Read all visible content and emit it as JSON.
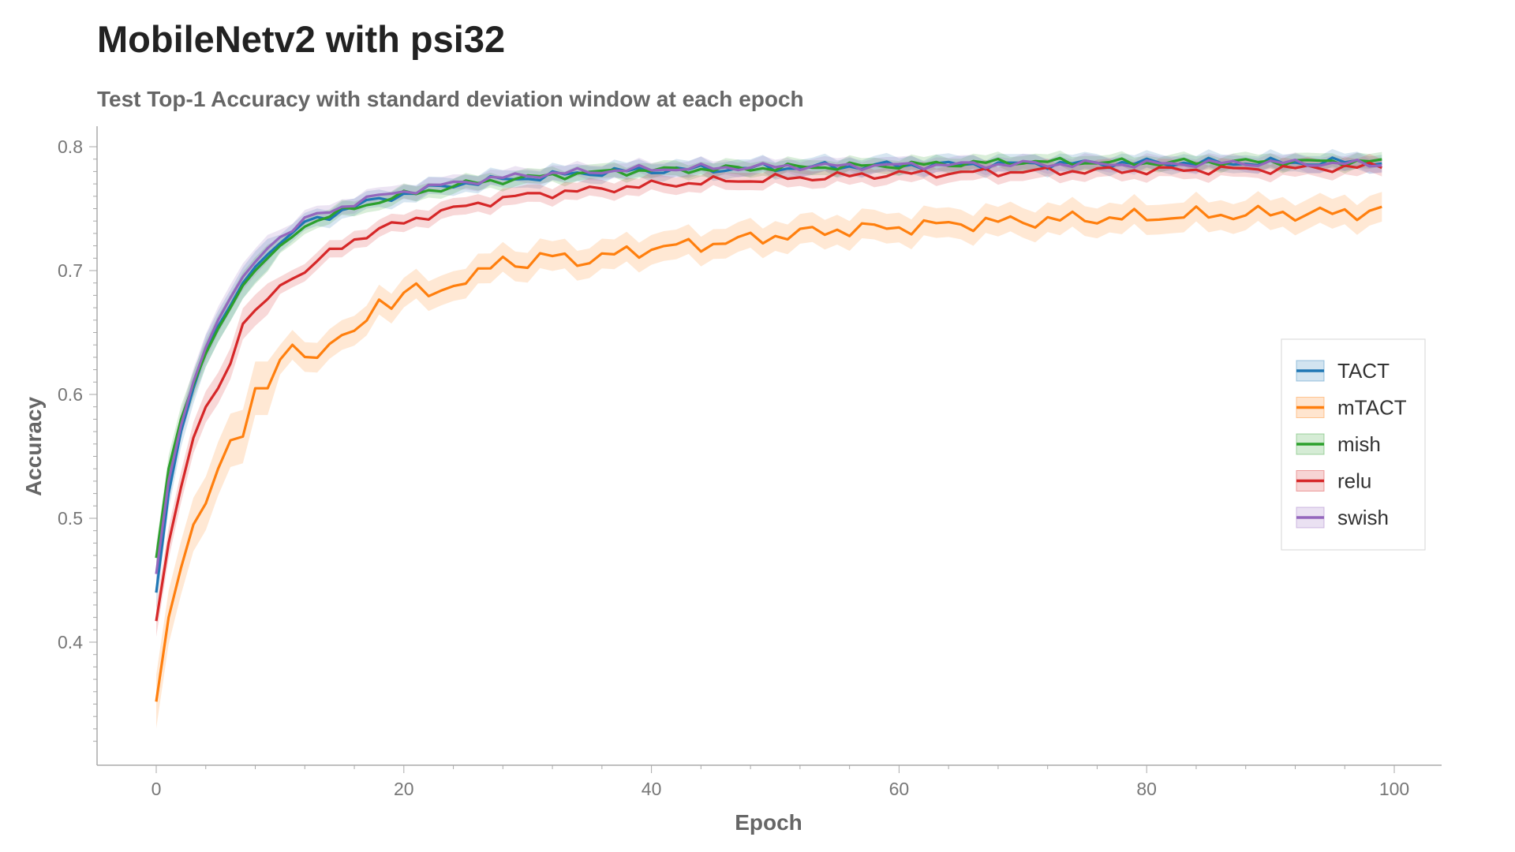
{
  "chart_data": {
    "type": "line",
    "title": "MobileNetv2 with psi32",
    "subtitle": "Test Top-1 Accuracy with standard deviation window at each epoch",
    "xlabel": "Epoch",
    "ylabel": "Accuracy",
    "xlim": [
      -5,
      104
    ],
    "ylim": [
      0.31,
      0.82
    ],
    "xticks": [
      0,
      20,
      40,
      60,
      80,
      100
    ],
    "yticks": [
      0.4,
      0.5,
      0.6,
      0.7,
      0.8
    ],
    "grid": false,
    "legend_position": "center-right",
    "bands": "standard deviation window",
    "series": [
      {
        "name": "TACT",
        "color": "#1f77b4",
        "anchors": [
          [
            0,
            0.44
          ],
          [
            1,
            0.52
          ],
          [
            2,
            0.57
          ],
          [
            3,
            0.605
          ],
          [
            4,
            0.635
          ],
          [
            5,
            0.655
          ],
          [
            6,
            0.672
          ],
          [
            7,
            0.69
          ],
          [
            8,
            0.703
          ],
          [
            9,
            0.713
          ],
          [
            10,
            0.722
          ],
          [
            12,
            0.738
          ],
          [
            14,
            0.745
          ],
          [
            16,
            0.752
          ],
          [
            18,
            0.757
          ],
          [
            20,
            0.762
          ],
          [
            25,
            0.771
          ],
          [
            30,
            0.775
          ],
          [
            35,
            0.779
          ],
          [
            40,
            0.781
          ],
          [
            50,
            0.783
          ],
          [
            60,
            0.785
          ],
          [
            70,
            0.786
          ],
          [
            80,
            0.787
          ],
          [
            90,
            0.787
          ],
          [
            99,
            0.788
          ]
        ],
        "std": 0.007
      },
      {
        "name": "mTACT",
        "color": "#ff7f0e",
        "anchors": [
          [
            0,
            0.352
          ],
          [
            1,
            0.42
          ],
          [
            2,
            0.46
          ],
          [
            3,
            0.495
          ],
          [
            4,
            0.512
          ],
          [
            5,
            0.54
          ],
          [
            6,
            0.563
          ],
          [
            7,
            0.566
          ],
          [
            8,
            0.605
          ],
          [
            9,
            0.605
          ],
          [
            10,
            0.628
          ],
          [
            11,
            0.635
          ],
          [
            12,
            0.63
          ],
          [
            14,
            0.64
          ],
          [
            15,
            0.65
          ],
          [
            16,
            0.645
          ],
          [
            17,
            0.66
          ],
          [
            18,
            0.68
          ],
          [
            19,
            0.67
          ],
          [
            20,
            0.685
          ],
          [
            22,
            0.68
          ],
          [
            24,
            0.69
          ],
          [
            26,
            0.695
          ],
          [
            28,
            0.71
          ],
          [
            30,
            0.705
          ],
          [
            32,
            0.712
          ],
          [
            35,
            0.708
          ],
          [
            38,
            0.715
          ],
          [
            40,
            0.718
          ],
          [
            45,
            0.722
          ],
          [
            50,
            0.728
          ],
          [
            55,
            0.733
          ],
          [
            60,
            0.735
          ],
          [
            65,
            0.738
          ],
          [
            70,
            0.74
          ],
          [
            75,
            0.742
          ],
          [
            80,
            0.743
          ],
          [
            85,
            0.745
          ],
          [
            90,
            0.746
          ],
          [
            95,
            0.746
          ],
          [
            99,
            0.749
          ]
        ],
        "std": 0.012
      },
      {
        "name": "mish",
        "color": "#2ca02c",
        "anchors": [
          [
            0,
            0.468
          ],
          [
            1,
            0.54
          ],
          [
            2,
            0.58
          ],
          [
            3,
            0.608
          ],
          [
            4,
            0.633
          ],
          [
            5,
            0.653
          ],
          [
            6,
            0.67
          ],
          [
            7,
            0.688
          ],
          [
            8,
            0.7
          ],
          [
            9,
            0.71
          ],
          [
            10,
            0.72
          ],
          [
            12,
            0.737
          ],
          [
            14,
            0.744
          ],
          [
            16,
            0.751
          ],
          [
            18,
            0.756
          ],
          [
            20,
            0.761
          ],
          [
            25,
            0.77
          ],
          [
            30,
            0.775
          ],
          [
            35,
            0.779
          ],
          [
            40,
            0.781
          ],
          [
            50,
            0.783
          ],
          [
            60,
            0.785
          ],
          [
            70,
            0.788
          ],
          [
            80,
            0.787
          ],
          [
            90,
            0.788
          ],
          [
            99,
            0.788
          ]
        ],
        "std": 0.006
      },
      {
        "name": "relu",
        "color": "#d62728",
        "anchors": [
          [
            0,
            0.417
          ],
          [
            1,
            0.48
          ],
          [
            2,
            0.525
          ],
          [
            3,
            0.565
          ],
          [
            4,
            0.59
          ],
          [
            5,
            0.605
          ],
          [
            6,
            0.625
          ],
          [
            7,
            0.657
          ],
          [
            8,
            0.668
          ],
          [
            9,
            0.677
          ],
          [
            10,
            0.688
          ],
          [
            12,
            0.7
          ],
          [
            14,
            0.714
          ],
          [
            16,
            0.725
          ],
          [
            18,
            0.733
          ],
          [
            20,
            0.739
          ],
          [
            22,
            0.745
          ],
          [
            25,
            0.752
          ],
          [
            28,
            0.758
          ],
          [
            30,
            0.761
          ],
          [
            35,
            0.765
          ],
          [
            40,
            0.769
          ],
          [
            45,
            0.772
          ],
          [
            50,
            0.774
          ],
          [
            55,
            0.776
          ],
          [
            60,
            0.778
          ],
          [
            70,
            0.78
          ],
          [
            80,
            0.781
          ],
          [
            90,
            0.782
          ],
          [
            99,
            0.784
          ]
        ],
        "std": 0.007
      },
      {
        "name": "swish",
        "color": "#9467bd",
        "anchors": [
          [
            0,
            0.455
          ],
          [
            1,
            0.53
          ],
          [
            2,
            0.575
          ],
          [
            3,
            0.61
          ],
          [
            4,
            0.638
          ],
          [
            5,
            0.66
          ],
          [
            6,
            0.678
          ],
          [
            7,
            0.695
          ],
          [
            8,
            0.707
          ],
          [
            9,
            0.718
          ],
          [
            10,
            0.727
          ],
          [
            12,
            0.741
          ],
          [
            14,
            0.748
          ],
          [
            16,
            0.755
          ],
          [
            18,
            0.76
          ],
          [
            20,
            0.764
          ],
          [
            25,
            0.772
          ],
          [
            30,
            0.777
          ],
          [
            35,
            0.78
          ],
          [
            40,
            0.782
          ],
          [
            50,
            0.784
          ],
          [
            60,
            0.785
          ],
          [
            70,
            0.786
          ],
          [
            80,
            0.786
          ],
          [
            90,
            0.787
          ],
          [
            99,
            0.786
          ]
        ],
        "std": 0.006
      }
    ]
  }
}
